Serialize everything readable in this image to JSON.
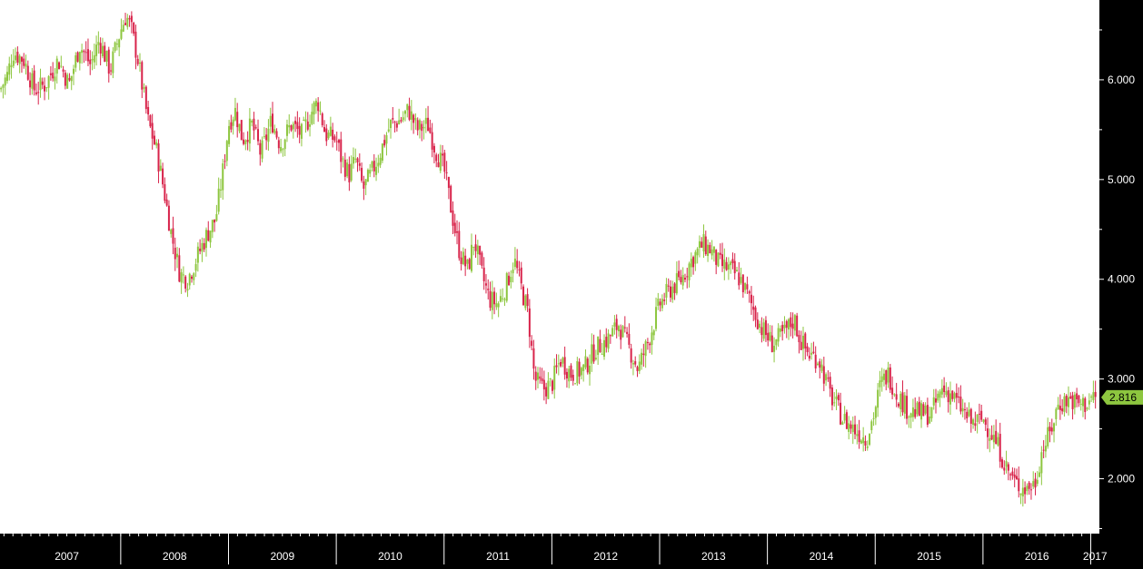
{
  "chart_data": {
    "type": "candlestick",
    "title": "",
    "xlabel": "",
    "ylabel": "",
    "x_ticks": [
      "2007",
      "2008",
      "2009",
      "2010",
      "2011",
      "2012",
      "2013",
      "2014",
      "2015",
      "2016",
      "2017"
    ],
    "y_ticks": [
      "2.000",
      "3.000",
      "4.000",
      "5.000",
      "6.000"
    ],
    "ylim": [
      1.45,
      6.8
    ],
    "xlim": [
      2006.88,
      2017.08
    ],
    "grid": false,
    "last_price_label": "2.816",
    "up_color": "#8dc63f",
    "down_color": "#d8234a",
    "price_path": [
      [
        2006.88,
        5.9
      ],
      [
        2006.95,
        6.05
      ],
      [
        2007.0,
        6.28
      ],
      [
        2007.1,
        6.2
      ],
      [
        2007.2,
        5.9
      ],
      [
        2007.3,
        5.95
      ],
      [
        2007.42,
        6.2
      ],
      [
        2007.52,
        5.95
      ],
      [
        2007.62,
        6.35
      ],
      [
        2007.72,
        6.15
      ],
      [
        2007.8,
        6.4
      ],
      [
        2007.9,
        6.1
      ],
      [
        2008.0,
        6.5
      ],
      [
        2008.05,
        6.65
      ],
      [
        2008.1,
        6.5
      ],
      [
        2008.16,
        6.2
      ],
      [
        2008.25,
        5.6
      ],
      [
        2008.33,
        5.3
      ],
      [
        2008.4,
        4.9
      ],
      [
        2008.47,
        4.45
      ],
      [
        2008.55,
        4.05
      ],
      [
        2008.62,
        4.0
      ],
      [
        2008.7,
        4.2
      ],
      [
        2008.8,
        4.45
      ],
      [
        2008.88,
        4.6
      ],
      [
        2008.95,
        5.1
      ],
      [
        2009.0,
        5.55
      ],
      [
        2009.06,
        5.7
      ],
      [
        2009.13,
        5.4
      ],
      [
        2009.22,
        5.55
      ],
      [
        2009.3,
        5.25
      ],
      [
        2009.4,
        5.6
      ],
      [
        2009.48,
        5.35
      ],
      [
        2009.58,
        5.55
      ],
      [
        2009.68,
        5.45
      ],
      [
        2009.78,
        5.7
      ],
      [
        2009.83,
        5.78
      ],
      [
        2009.9,
        5.45
      ],
      [
        2010.0,
        5.4
      ],
      [
        2010.05,
        5.2
      ],
      [
        2010.12,
        5.05
      ],
      [
        2010.18,
        5.2
      ],
      [
        2010.25,
        4.9
      ],
      [
        2010.32,
        5.05
      ],
      [
        2010.4,
        5.25
      ],
      [
        2010.5,
        5.55
      ],
      [
        2010.6,
        5.6
      ],
      [
        2010.67,
        5.7
      ],
      [
        2010.75,
        5.5
      ],
      [
        2010.85,
        5.55
      ],
      [
        2010.92,
        5.3
      ],
      [
        2011.0,
        5.1
      ],
      [
        2011.05,
        4.8
      ],
      [
        2011.1,
        4.5
      ],
      [
        2011.15,
        4.25
      ],
      [
        2011.22,
        4.1
      ],
      [
        2011.28,
        4.4
      ],
      [
        2011.35,
        4.05
      ],
      [
        2011.42,
        3.8
      ],
      [
        2011.5,
        3.75
      ],
      [
        2011.58,
        3.95
      ],
      [
        2011.65,
        4.2
      ],
      [
        2011.72,
        3.9
      ],
      [
        2011.78,
        3.65
      ],
      [
        2011.84,
        3.0
      ],
      [
        2011.92,
        2.9
      ],
      [
        2012.0,
        2.95
      ],
      [
        2012.08,
        3.2
      ],
      [
        2012.18,
        3.05
      ],
      [
        2012.3,
        3.1
      ],
      [
        2012.4,
        3.3
      ],
      [
        2012.52,
        3.4
      ],
      [
        2012.62,
        3.55
      ],
      [
        2012.72,
        3.3
      ],
      [
        2012.8,
        3.1
      ],
      [
        2012.9,
        3.4
      ],
      [
        2013.0,
        3.75
      ],
      [
        2013.1,
        3.9
      ],
      [
        2013.2,
        4.0
      ],
      [
        2013.3,
        4.2
      ],
      [
        2013.4,
        4.35
      ],
      [
        2013.47,
        4.3
      ],
      [
        2013.55,
        4.15
      ],
      [
        2013.65,
        4.1
      ],
      [
        2013.75,
        4.0
      ],
      [
        2013.85,
        3.75
      ],
      [
        2013.95,
        3.5
      ],
      [
        2014.05,
        3.35
      ],
      [
        2014.15,
        3.45
      ],
      [
        2014.25,
        3.6
      ],
      [
        2014.3,
        3.4
      ],
      [
        2014.38,
        3.25
      ],
      [
        2014.48,
        3.2
      ],
      [
        2014.58,
        2.85
      ],
      [
        2014.7,
        2.6
      ],
      [
        2014.8,
        2.5
      ],
      [
        2014.92,
        2.4
      ],
      [
        2015.0,
        2.7
      ],
      [
        2015.05,
        2.95
      ],
      [
        2015.12,
        3.05
      ],
      [
        2015.2,
        2.85
      ],
      [
        2015.3,
        2.7
      ],
      [
        2015.42,
        2.65
      ],
      [
        2015.52,
        2.65
      ],
      [
        2015.62,
        2.9
      ],
      [
        2015.7,
        2.85
      ],
      [
        2015.8,
        2.7
      ],
      [
        2015.9,
        2.55
      ],
      [
        2016.0,
        2.6
      ],
      [
        2016.08,
        2.45
      ],
      [
        2016.15,
        2.3
      ],
      [
        2016.22,
        2.1
      ],
      [
        2016.3,
        1.95
      ],
      [
        2016.4,
        1.9
      ],
      [
        2016.48,
        1.95
      ],
      [
        2016.55,
        2.3
      ],
      [
        2016.62,
        2.45
      ],
      [
        2016.7,
        2.75
      ],
      [
        2016.8,
        2.8
      ],
      [
        2016.88,
        2.75
      ],
      [
        2016.95,
        2.75
      ],
      [
        2017.02,
        2.82
      ],
      [
        2017.05,
        2.816
      ]
    ]
  }
}
